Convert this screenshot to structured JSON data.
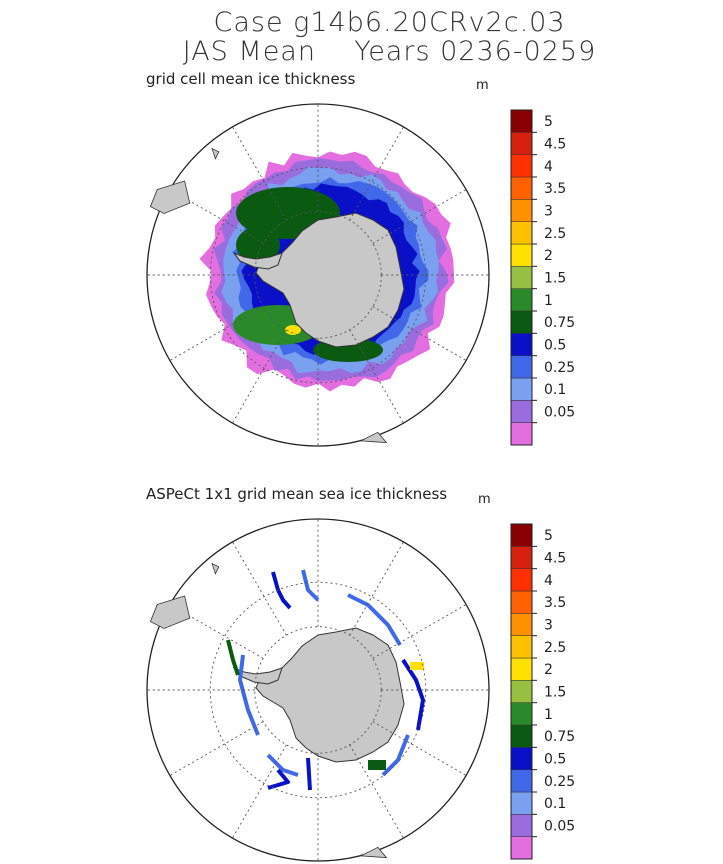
{
  "header": {
    "title_line1": "Case g14b6.20CRv2c.03",
    "title_line2": "JAS Mean    Years 0236-0259"
  },
  "panels": [
    {
      "title": "grid cell mean ice thickness",
      "unit": "m"
    },
    {
      "title": "ASPeCt 1x1 grid mean sea ice thickness",
      "unit": "m"
    }
  ],
  "colors": {
    "land": "#c8c8c8",
    "grid": "#555555"
  },
  "chart_data": [
    {
      "type": "heatmap",
      "title": "grid cell mean ice thickness",
      "unit": "m",
      "projection": "south polar stereographic",
      "legend_placement": "right",
      "colorbar": {
        "levels": [
          "0.05",
          "0.1",
          "0.25",
          "0.5",
          "0.75",
          "1",
          "1.5",
          "2",
          "2.5",
          "3",
          "3.5",
          "4",
          "4.5",
          "5"
        ],
        "colors": [
          "#e36ee0",
          "#9a6ddf",
          "#7aa0f0",
          "#4068e8",
          "#0a10c8",
          "#0a5a12",
          "#2a8a2a",
          "#98c040",
          "#ffe000",
          "#ffc000",
          "#ff9000",
          "#ff6000",
          "#ff3000",
          "#d82010",
          "#8a0000"
        ]
      }
    },
    {
      "type": "heatmap",
      "title": "ASPeCt 1x1 grid mean sea ice thickness",
      "unit": "m",
      "projection": "south polar stereographic",
      "legend_placement": "right",
      "colorbar": {
        "levels": [
          "0.05",
          "0.1",
          "0.25",
          "0.5",
          "0.75",
          "1",
          "1.5",
          "2",
          "2.5",
          "3",
          "3.5",
          "4",
          "4.5",
          "5"
        ],
        "colors": [
          "#e36ee0",
          "#9a6ddf",
          "#7aa0f0",
          "#4068e8",
          "#0a10c8",
          "#0a5a12",
          "#2a8a2a",
          "#98c040",
          "#ffe000",
          "#ffc000",
          "#ff9000",
          "#ff6000",
          "#ff3000",
          "#d82010",
          "#8a0000"
        ]
      }
    }
  ]
}
